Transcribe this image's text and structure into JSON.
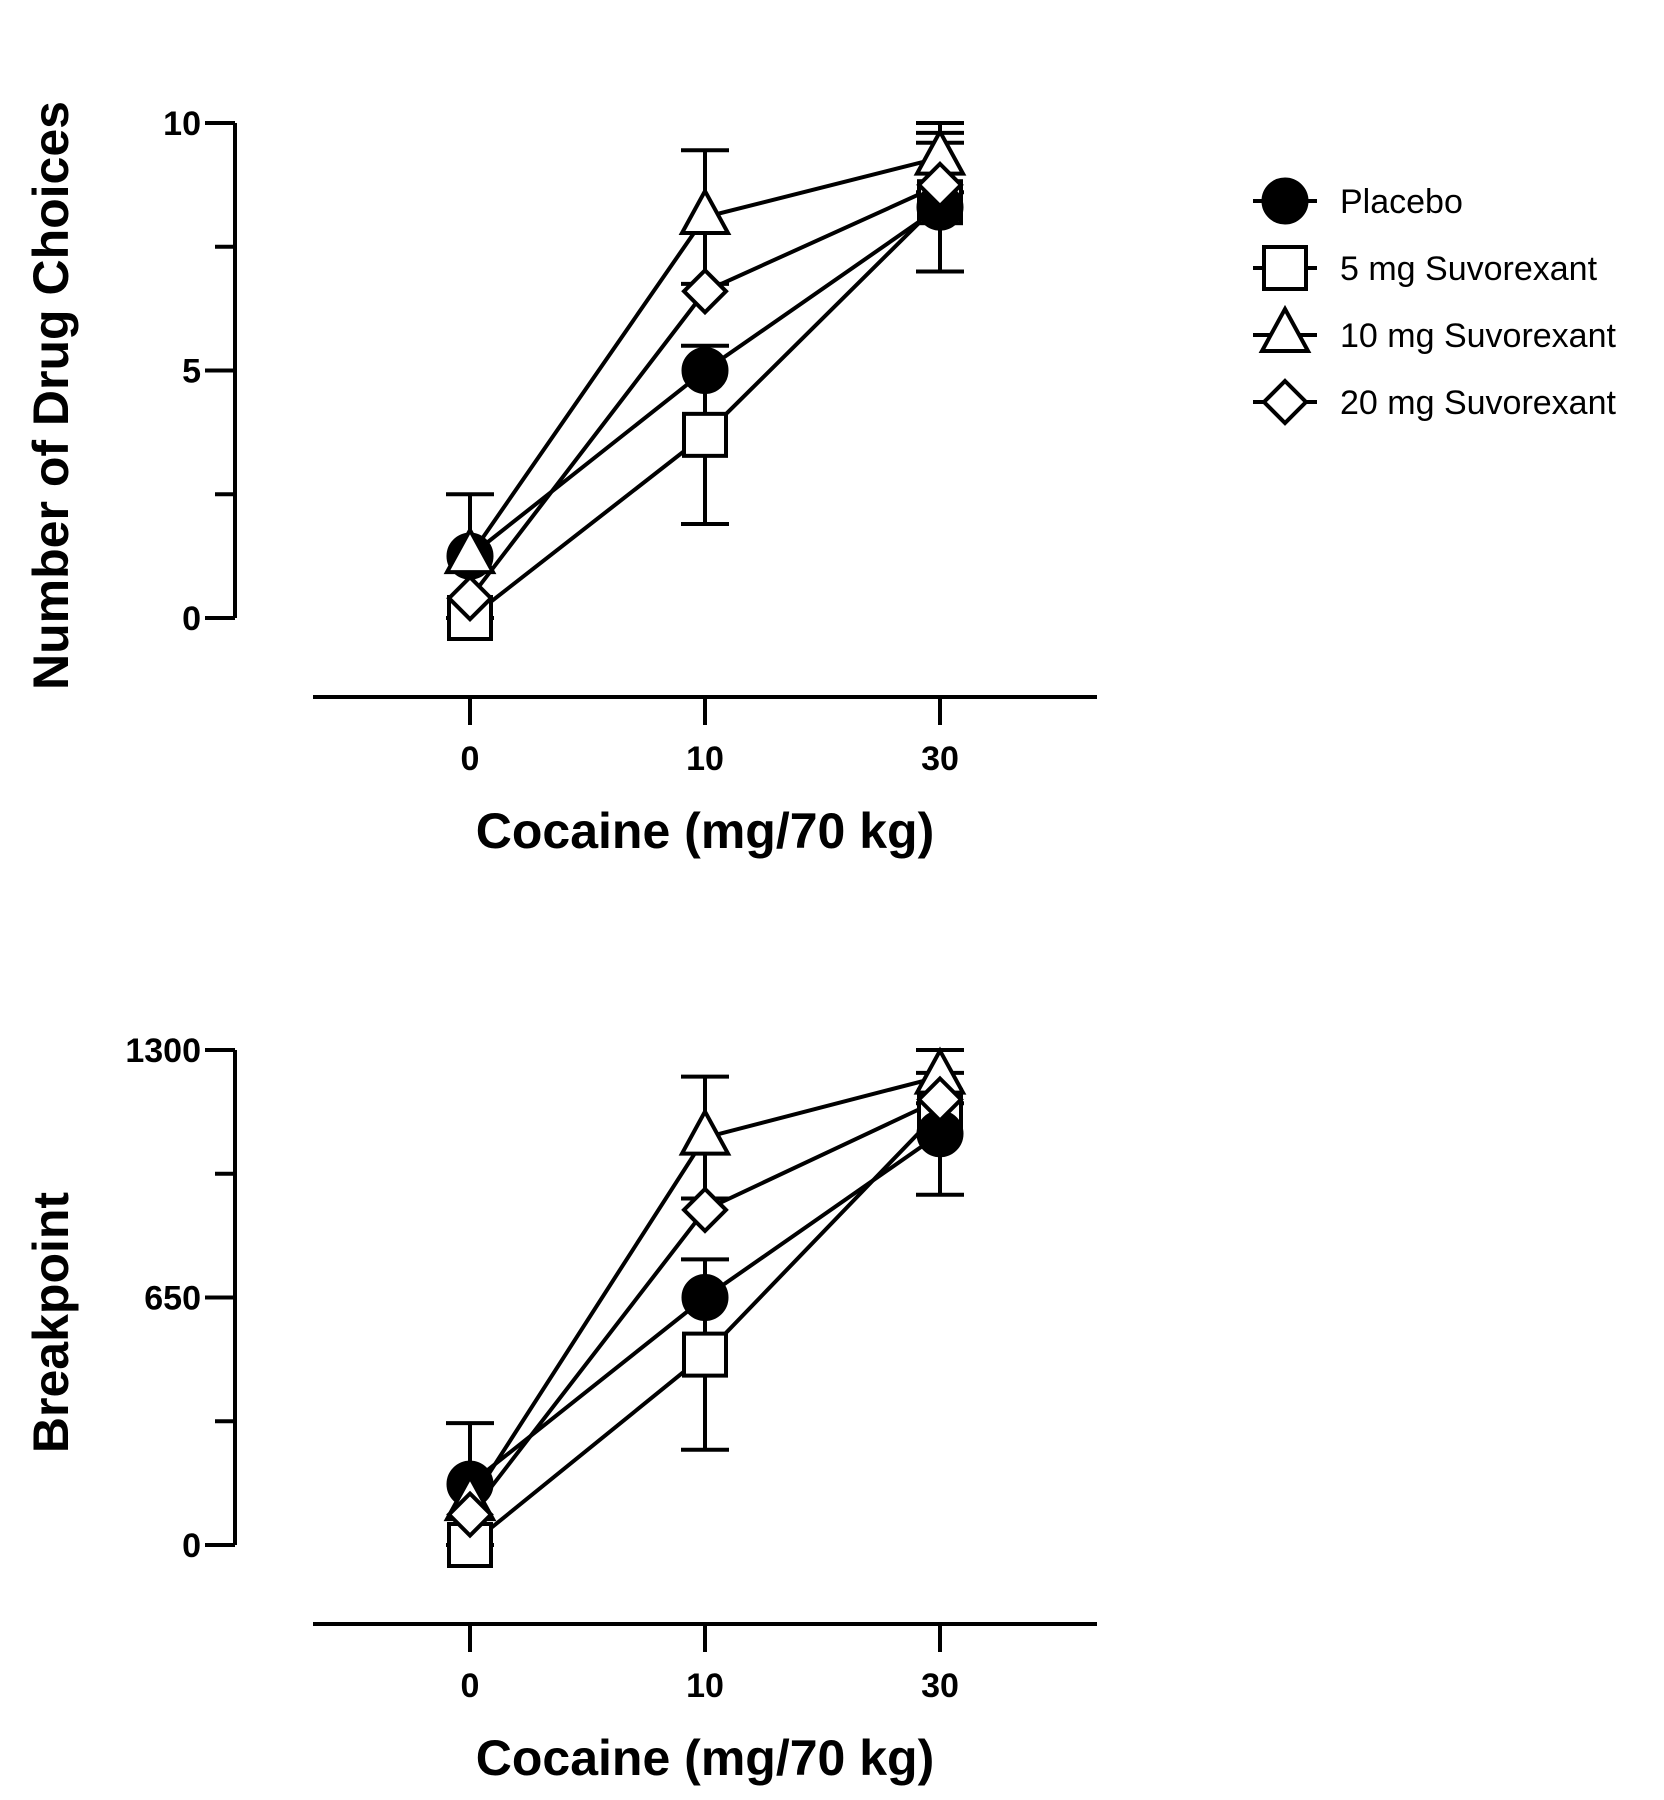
{
  "chart_data": [
    {
      "type": "line",
      "x": [
        0,
        10,
        30
      ],
      "xtick_labels": [
        "0",
        "10",
        "30"
      ],
      "xlabel": "Cocaine (mg/70 kg)",
      "ylabel": "Number of Drug Choices",
      "ylim": [
        0,
        10
      ],
      "yticks_labeled": [
        0,
        5,
        10
      ],
      "yticks_minor": [
        2.5,
        7.5
      ],
      "series": [
        {
          "name": "Placebo",
          "marker": "filled-circle",
          "values": [
            1.25,
            5.0,
            8.3
          ],
          "error": [
            1.25,
            0.0,
            1.3
          ]
        },
        {
          "name": "5 mg Suvorexant",
          "marker": "open-square",
          "values": [
            0.0,
            3.7,
            8.4
          ],
          "error": [
            0.0,
            1.8,
            1.4
          ]
        },
        {
          "name": "10 mg Suvorexant",
          "marker": "open-triangle",
          "values": [
            1.25,
            8.1,
            9.3
          ],
          "error": [
            0.0,
            1.35,
            0.7
          ]
        },
        {
          "name": "20 mg Suvorexant",
          "marker": "open-diamond",
          "values": [
            0.4,
            6.6,
            8.75
          ],
          "error": [
            0.0,
            0.0,
            0.0
          ]
        }
      ]
    },
    {
      "type": "line",
      "x": [
        0,
        10,
        30
      ],
      "xtick_labels": [
        "0",
        "10",
        "30"
      ],
      "xlabel": "Cocaine (mg/70 kg)",
      "ylabel": "Breakpoint",
      "ylim": [
        0,
        1300
      ],
      "yticks_labeled": [
        0,
        650,
        1300
      ],
      "yticks_minor": [
        325,
        975
      ],
      "series": [
        {
          "name": "Placebo",
          "marker": "filled-circle",
          "values": [
            160,
            650,
            1080
          ],
          "error": [
            160,
            0,
            160
          ]
        },
        {
          "name": "5 mg Suvorexant",
          "marker": "open-square",
          "values": [
            0,
            500,
            1140
          ],
          "error": [
            0,
            250,
            0
          ]
        },
        {
          "name": "10 mg Suvorexant",
          "marker": "open-triangle",
          "values": [
            110,
            1070,
            1230
          ],
          "error": [
            0,
            160,
            70
          ]
        },
        {
          "name": "20 mg Suvorexant",
          "marker": "open-diamond",
          "values": [
            80,
            880,
            1170
          ],
          "error": [
            0,
            0,
            0
          ]
        }
      ]
    }
  ],
  "legend": {
    "items": [
      {
        "label": "Placebo",
        "marker": "filled-circle"
      },
      {
        "label": "5 mg Suvorexant",
        "marker": "open-square"
      },
      {
        "label": "10 mg Suvorexant",
        "marker": "open-triangle"
      },
      {
        "label": "20 mg Suvorexant",
        "marker": "open-diamond"
      }
    ]
  }
}
